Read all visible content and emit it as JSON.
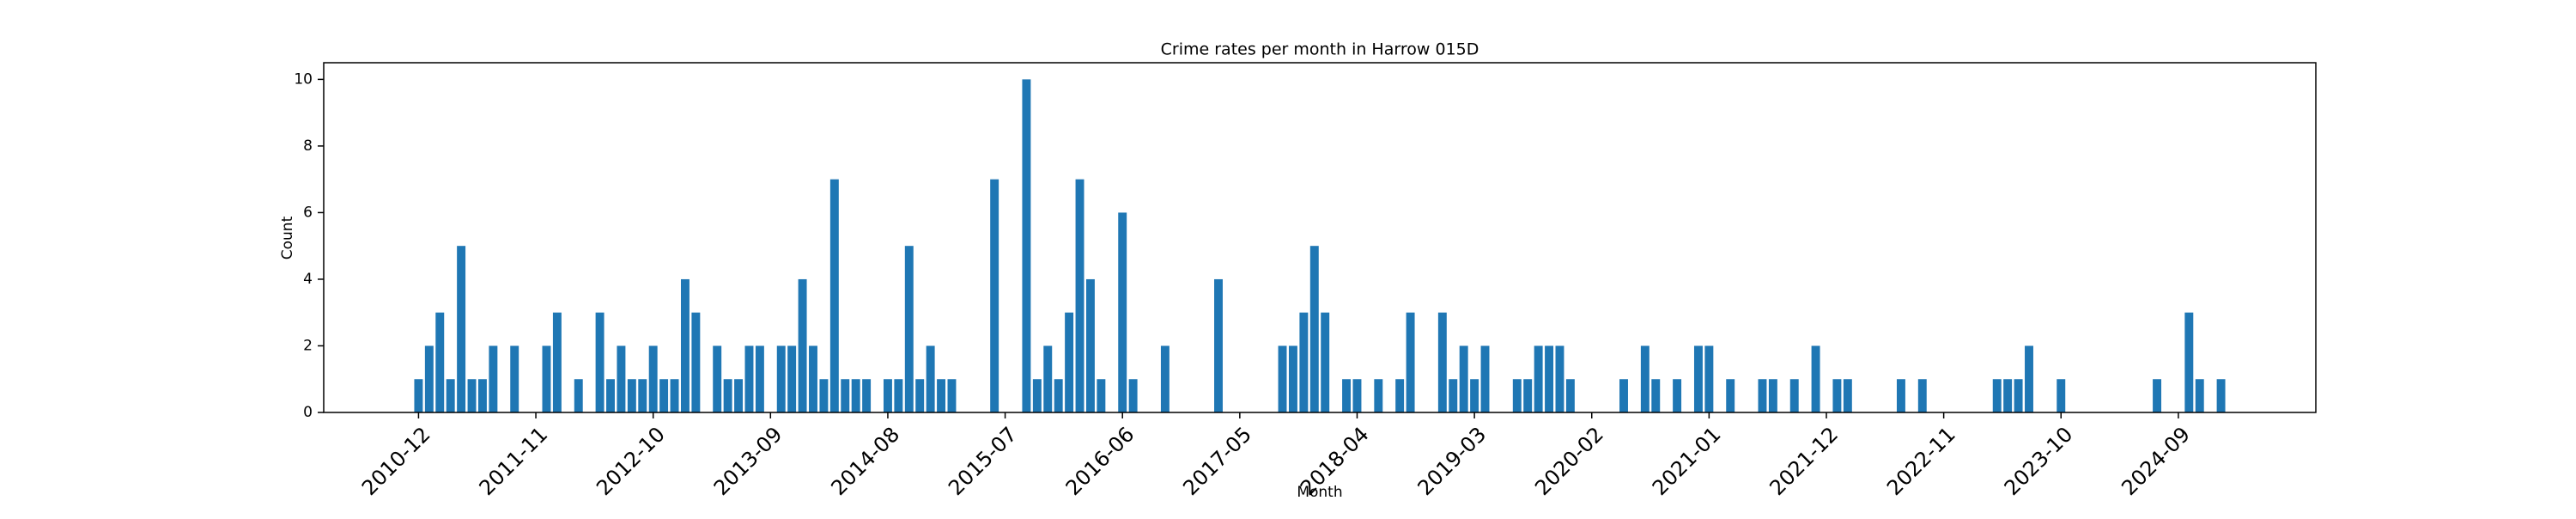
{
  "chart_data": {
    "type": "bar",
    "title": "Crime rates per month in Harrow 015D",
    "x_label": "Month",
    "y_label": "Count",
    "color": "#1f77b4",
    "categories": [
      "2010-12",
      null,
      null,
      null,
      null,
      null,
      null,
      null,
      null,
      null,
      null,
      "2011-11",
      null,
      null,
      null,
      null,
      null,
      null,
      null,
      null,
      null,
      null,
      "2012-10",
      null,
      null,
      null,
      null,
      null,
      null,
      null,
      null,
      null,
      null,
      "2013-09",
      null,
      null,
      null,
      null,
      null,
      null,
      null,
      null,
      null,
      null,
      "2014-08",
      null,
      null,
      null,
      null,
      null,
      null,
      null,
      null,
      null,
      null,
      "2015-07",
      null,
      null,
      null,
      null,
      null,
      null,
      null,
      null,
      null,
      null,
      "2016-06",
      null,
      null,
      null,
      null,
      null,
      null,
      null,
      null,
      null,
      null,
      "2017-05",
      null,
      null,
      null,
      null,
      null,
      null,
      null,
      null,
      null,
      null,
      "2018-04",
      null,
      null,
      null,
      null,
      null,
      null,
      null,
      null,
      null,
      null,
      "2019-03",
      null,
      null,
      null,
      null,
      null,
      null,
      null,
      null,
      null,
      null,
      "2020-02",
      null,
      null,
      null,
      null,
      null,
      null,
      null,
      null,
      null,
      null,
      "2021-01",
      null,
      null,
      null,
      null,
      null,
      null,
      null,
      null,
      null,
      null,
      "2021-12",
      null,
      null,
      null,
      null,
      null,
      null,
      null,
      null,
      null,
      null,
      "2022-11",
      null,
      null,
      null,
      null,
      null,
      null,
      null,
      null,
      null,
      null,
      "2023-10",
      null,
      null,
      null,
      null,
      null,
      null,
      null,
      null,
      null,
      null,
      "2024-09",
      null,
      null,
      null,
      null
    ],
    "values": [
      1,
      2,
      3,
      1,
      5,
      1,
      1,
      2,
      0,
      2,
      0,
      0,
      2,
      3,
      0,
      1,
      0,
      3,
      1,
      2,
      1,
      1,
      2,
      1,
      1,
      4,
      3,
      0,
      2,
      1,
      1,
      2,
      2,
      0,
      2,
      2,
      4,
      2,
      1,
      7,
      1,
      1,
      1,
      0,
      1,
      1,
      5,
      1,
      2,
      1,
      1,
      0,
      0,
      0,
      7,
      0,
      0,
      10,
      1,
      2,
      1,
      3,
      7,
      4,
      1,
      0,
      6,
      1,
      0,
      0,
      2,
      0,
      0,
      0,
      0,
      4,
      0,
      0,
      0,
      0,
      0,
      2,
      2,
      3,
      5,
      3,
      0,
      1,
      1,
      0,
      1,
      0,
      1,
      3,
      0,
      0,
      3,
      1,
      2,
      1,
      2,
      0,
      0,
      1,
      1,
      2,
      2,
      2,
      1,
      0,
      0,
      0,
      0,
      1,
      0,
      2,
      1,
      0,
      1,
      0,
      2,
      2,
      0,
      1,
      0,
      0,
      1,
      1,
      0,
      1,
      0,
      2,
      0,
      1,
      1,
      0,
      0,
      0,
      0,
      1,
      0,
      1,
      0,
      0,
      0,
      0,
      0,
      0,
      1,
      1,
      1,
      2,
      0,
      0,
      1,
      0,
      0,
      0,
      0,
      0,
      0,
      0,
      0,
      1,
      0,
      0,
      3,
      1,
      0,
      1
    ],
    "ylim": [
      0,
      10.5
    ],
    "yticks": [
      0,
      2,
      4,
      6,
      8,
      10
    ],
    "grid": false
  }
}
